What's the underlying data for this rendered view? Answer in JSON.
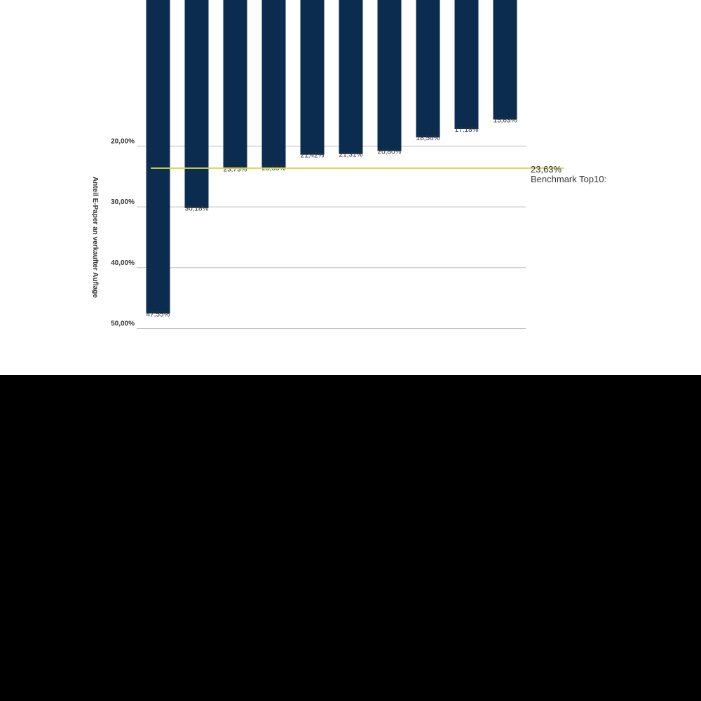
{
  "chart_data": {
    "type": "bar",
    "ylabel": "Anteil E-Paper an verkaufter Auflage",
    "ylim": [
      0,
      50
    ],
    "yticks": [
      "20,00%",
      "30,00%",
      "40,00%",
      "50,00%"
    ],
    "ytick_values": [
      20,
      30,
      40,
      50
    ],
    "values": [
      47.55,
      30.18,
      23.73,
      23.55,
      21.42,
      21.31,
      20.8,
      18.56,
      17.18,
      15.63
    ],
    "value_labels": [
      "47,55%",
      "30,18%",
      "23,73%",
      "23,55%",
      "21,42%",
      "21,31%",
      "20,80%",
      "18,56%",
      "17,18%",
      "15,63%"
    ],
    "reference_line": {
      "value": 23.63,
      "label": "Benchmark Top10:",
      "value_label": "23,63%"
    },
    "bar_color": "#0b2c4f",
    "reference_color": "#d9d64a",
    "grid": true
  }
}
